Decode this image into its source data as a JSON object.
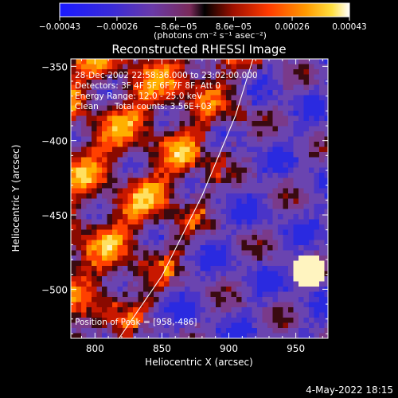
{
  "chart_data": {
    "type": "heatmap",
    "title": "Reconstructed RHESSI Image",
    "xlabel": "Heliocentric X (arcsec)",
    "ylabel": "Heliocentric Y (arcsec)",
    "xlim": [
      782,
      974
    ],
    "ylim": [
      -533,
      -345
    ],
    "x_ticks": [
      {
        "value": 800,
        "label": "800"
      },
      {
        "value": 850,
        "label": "850"
      },
      {
        "value": 900,
        "label": "900"
      },
      {
        "value": 950,
        "label": "950"
      }
    ],
    "y_ticks": [
      {
        "value": -350,
        "label": "−350"
      },
      {
        "value": -400,
        "label": "−400"
      },
      {
        "value": -450,
        "label": "−450"
      },
      {
        "value": -500,
        "label": "−500"
      }
    ],
    "colorbar": {
      "range": [
        -0.00043,
        0.00043
      ],
      "ticks": [
        {
          "value": -0.00043,
          "label": "−0.00043"
        },
        {
          "value": -0.00026,
          "label": "−0.00026"
        },
        {
          "value": -8.6e-05,
          "label": "−8.6e−05"
        },
        {
          "value": 8.6e-05,
          "label": "8.6e−05"
        },
        {
          "value": 0.00026,
          "label": "0.00026"
        },
        {
          "value": 0.00043,
          "label": "0.00043"
        }
      ],
      "units_label": "(photons cm⁻² s⁻¹ asec⁻²)"
    },
    "annotations": [
      "28-Dec-2002 22:58:36.000 to 23:02:00.000",
      "Detectors: 3F 4F 5F 6F 7F 8F, Att 0",
      "Energy Range: 12.0 - 25.0 keV",
      "Clean      Total counts: 3.56E+03"
    ],
    "peak_label": "Position of Peak = [958,-486]",
    "peak": [
      958,
      -486
    ],
    "limb_curve": [
      [
        818,
        -533
      ],
      [
        850,
        -491
      ],
      [
        880,
        -437
      ],
      [
        905,
        -383
      ],
      [
        918,
        -345
      ]
    ]
  },
  "footer": {
    "timestamp": "4-May-2022 18:15"
  }
}
